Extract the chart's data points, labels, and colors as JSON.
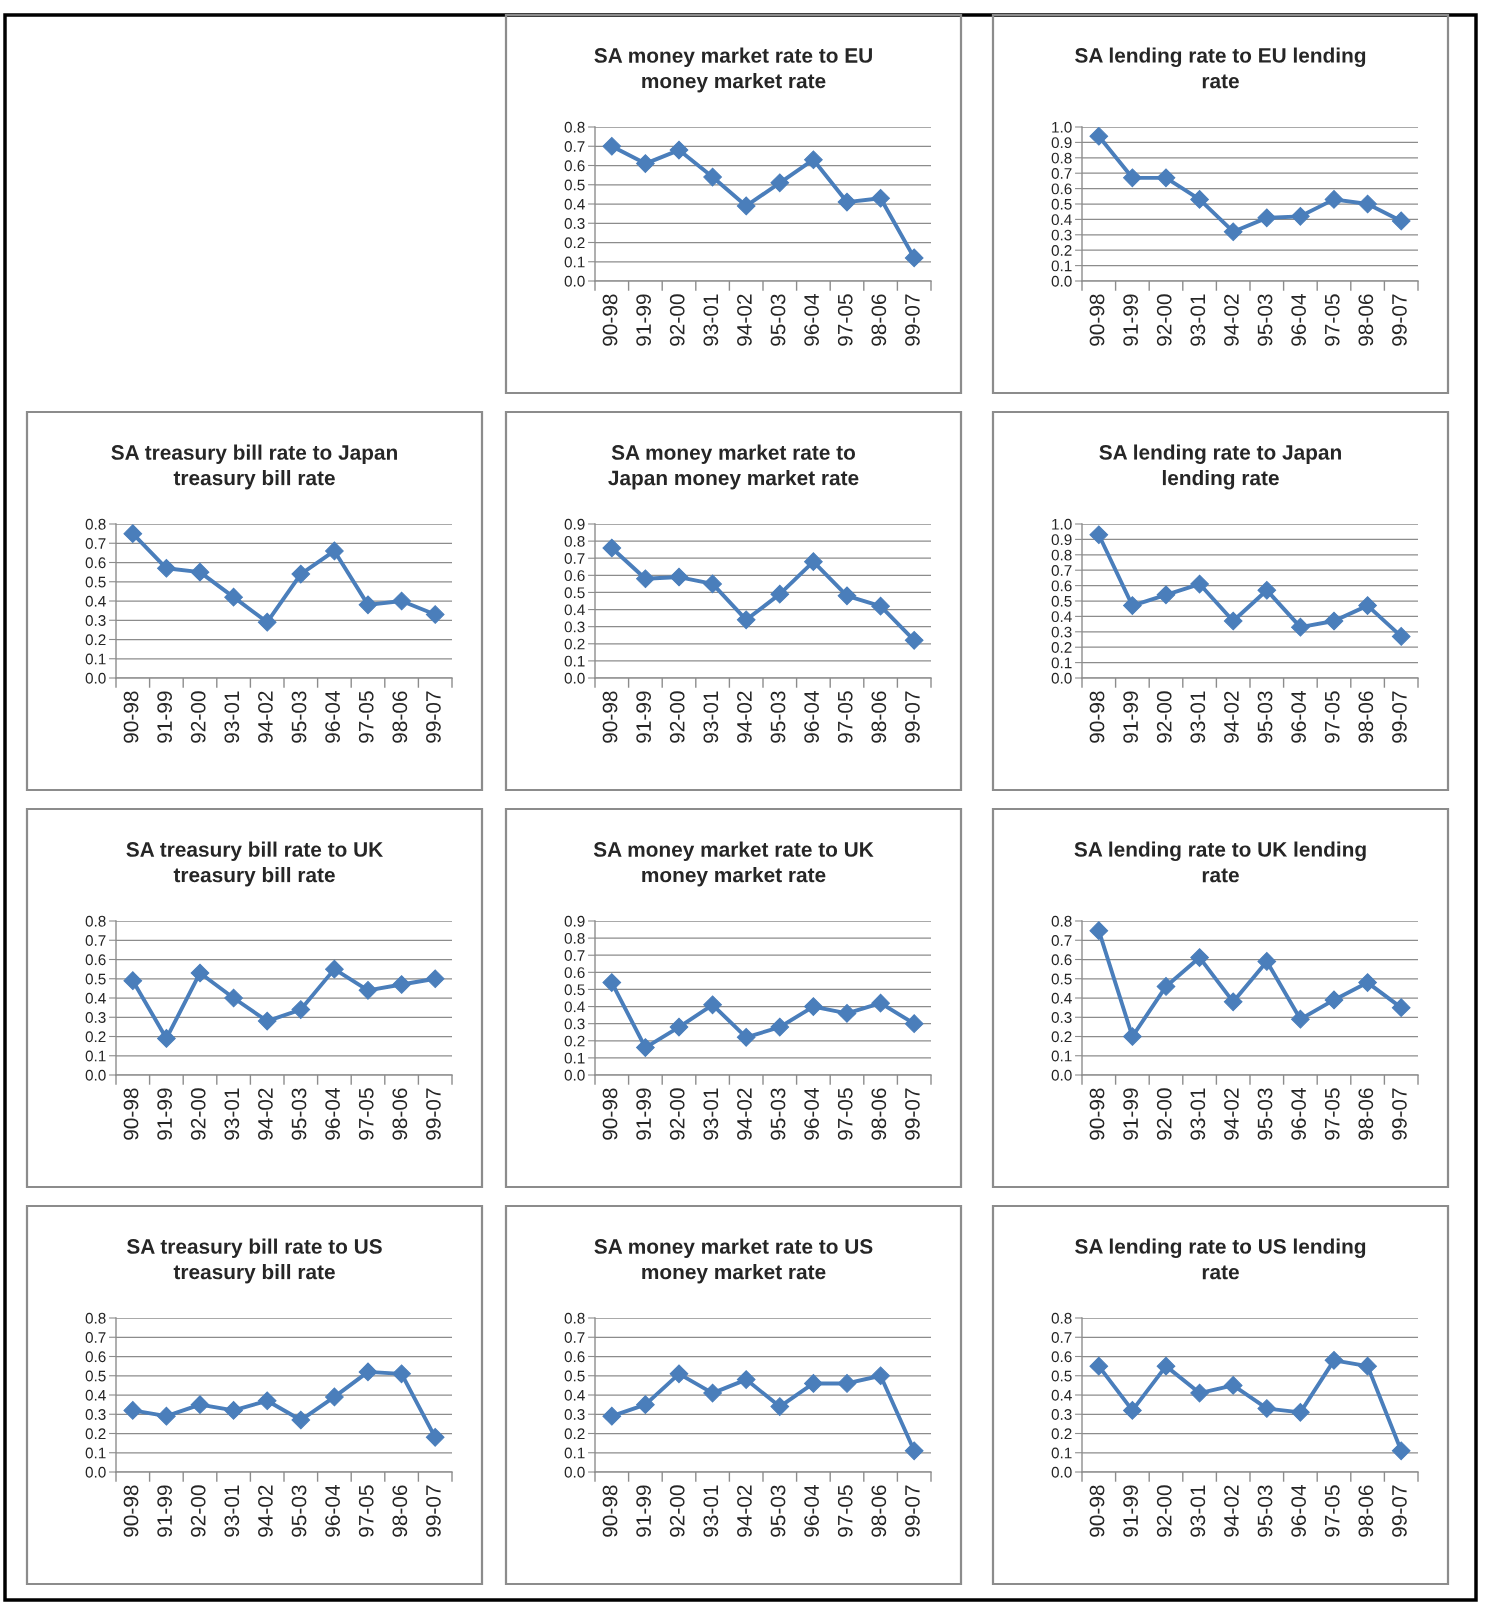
{
  "chart_data": [
    {
      "type": "line",
      "title": "SA money market rate to EU\nmoney market rate",
      "categories": [
        "90-98",
        "91-99",
        "92-00",
        "93-01",
        "94-02",
        "95-03",
        "96-04",
        "97-05",
        "98-06",
        "99-07"
      ],
      "values": [
        0.7,
        0.61,
        0.68,
        0.54,
        0.39,
        0.51,
        0.63,
        0.41,
        0.43,
        0.12
      ],
      "color": "#4a7ebb",
      "marker": "diamond",
      "grid": "y",
      "ylim": [
        0,
        0.8
      ],
      "yticks": [
        {
          "value": 0,
          "label": "0.0"
        },
        {
          "value": 0.1,
          "label": "0.1"
        },
        {
          "value": 0.2,
          "label": "0.2"
        },
        {
          "value": 0.3,
          "label": "0.3"
        },
        {
          "value": 0.4,
          "label": "0.4"
        },
        {
          "value": 0.5,
          "label": "0.5"
        },
        {
          "value": 0.6,
          "label": "0.6"
        },
        {
          "value": 0.7,
          "label": "0.7"
        },
        {
          "value": 0.8,
          "label": "0.8"
        }
      ]
    },
    {
      "type": "line",
      "title": "SA lending rate to EU lending\nrate",
      "categories": [
        "90-98",
        "91-99",
        "92-00",
        "93-01",
        "94-02",
        "95-03",
        "96-04",
        "97-05",
        "98-06",
        "99-07"
      ],
      "values": [
        0.94,
        0.67,
        0.67,
        0.53,
        0.32,
        0.41,
        0.42,
        0.53,
        0.5,
        0.39
      ],
      "color": "#4a7ebb",
      "marker": "diamond",
      "grid": "y",
      "ylim": [
        0,
        1
      ],
      "yticks": [
        {
          "value": 0,
          "label": "0.0"
        },
        {
          "value": 0.1,
          "label": "0.1"
        },
        {
          "value": 0.2,
          "label": "0.2"
        },
        {
          "value": 0.3,
          "label": "0.3"
        },
        {
          "value": 0.4,
          "label": "0.4"
        },
        {
          "value": 0.5,
          "label": "0.5"
        },
        {
          "value": 0.6,
          "label": "0.6"
        },
        {
          "value": 0.7,
          "label": "0.7"
        },
        {
          "value": 0.8,
          "label": "0.8"
        },
        {
          "value": 0.9,
          "label": "0.9"
        },
        {
          "value": 1,
          "label": "1.0"
        }
      ]
    },
    {
      "type": "line",
      "title": "SA treasury bill rate to Japan\ntreasury bill rate",
      "categories": [
        "90-98",
        "91-99",
        "92-00",
        "93-01",
        "94-02",
        "95-03",
        "96-04",
        "97-05",
        "98-06",
        "99-07"
      ],
      "values": [
        0.75,
        0.57,
        0.55,
        0.42,
        0.29,
        0.54,
        0.66,
        0.38,
        0.4,
        0.33
      ],
      "color": "#4a7ebb",
      "marker": "diamond",
      "grid": "y",
      "ylim": [
        0,
        0.8
      ],
      "yticks": [
        {
          "value": 0,
          "label": "0.0"
        },
        {
          "value": 0.1,
          "label": "0.1"
        },
        {
          "value": 0.2,
          "label": "0.2"
        },
        {
          "value": 0.3,
          "label": "0.3"
        },
        {
          "value": 0.4,
          "label": "0.4"
        },
        {
          "value": 0.5,
          "label": "0.5"
        },
        {
          "value": 0.6,
          "label": "0.6"
        },
        {
          "value": 0.7,
          "label": "0.7"
        },
        {
          "value": 0.8,
          "label": "0.8"
        }
      ]
    },
    {
      "type": "line",
      "title": "SA money market rate to\nJapan money market rate",
      "categories": [
        "90-98",
        "91-99",
        "92-00",
        "93-01",
        "94-02",
        "95-03",
        "96-04",
        "97-05",
        "98-06",
        "99-07"
      ],
      "values": [
        0.76,
        0.58,
        0.59,
        0.55,
        0.34,
        0.49,
        0.68,
        0.48,
        0.42,
        0.22
      ],
      "color": "#4a7ebb",
      "marker": "diamond",
      "grid": "y",
      "ylim": [
        0,
        0.9
      ],
      "yticks": [
        {
          "value": 0,
          "label": "0.0"
        },
        {
          "value": 0.1,
          "label": "0.1"
        },
        {
          "value": 0.2,
          "label": "0.2"
        },
        {
          "value": 0.3,
          "label": "0.3"
        },
        {
          "value": 0.4,
          "label": "0.4"
        },
        {
          "value": 0.5,
          "label": "0.5"
        },
        {
          "value": 0.6,
          "label": "0.6"
        },
        {
          "value": 0.7,
          "label": "0.7"
        },
        {
          "value": 0.8,
          "label": "0.8"
        },
        {
          "value": 0.9,
          "label": "0.9"
        }
      ]
    },
    {
      "type": "line",
      "title": "SA lending rate to Japan\nlending rate",
      "categories": [
        "90-98",
        "91-99",
        "92-00",
        "93-01",
        "94-02",
        "95-03",
        "96-04",
        "97-05",
        "98-06",
        "99-07"
      ],
      "values": [
        0.93,
        0.47,
        0.54,
        0.61,
        0.37,
        0.57,
        0.33,
        0.37,
        0.47,
        0.27
      ],
      "color": "#4a7ebb",
      "marker": "diamond",
      "grid": "y",
      "ylim": [
        0,
        1
      ],
      "yticks": [
        {
          "value": 0,
          "label": "0.0"
        },
        {
          "value": 0.1,
          "label": "0.1"
        },
        {
          "value": 0.2,
          "label": "0.2"
        },
        {
          "value": 0.3,
          "label": "0.3"
        },
        {
          "value": 0.4,
          "label": "0.4"
        },
        {
          "value": 0.5,
          "label": "0.5"
        },
        {
          "value": 0.6,
          "label": "0.6"
        },
        {
          "value": 0.7,
          "label": "0.7"
        },
        {
          "value": 0.8,
          "label": "0.8"
        },
        {
          "value": 0.9,
          "label": "0.9"
        },
        {
          "value": 1,
          "label": "1.0"
        }
      ]
    },
    {
      "type": "line",
      "title": "SA treasury bill rate to UK\ntreasury bill rate",
      "categories": [
        "90-98",
        "91-99",
        "92-00",
        "93-01",
        "94-02",
        "95-03",
        "96-04",
        "97-05",
        "98-06",
        "99-07"
      ],
      "values": [
        0.49,
        0.19,
        0.53,
        0.4,
        0.28,
        0.34,
        0.55,
        0.44,
        0.47,
        0.5
      ],
      "color": "#4a7ebb",
      "marker": "diamond",
      "grid": "y",
      "ylim": [
        0,
        0.8
      ],
      "yticks": [
        {
          "value": 0,
          "label": "0.0"
        },
        {
          "value": 0.1,
          "label": "0.1"
        },
        {
          "value": 0.2,
          "label": "0.2"
        },
        {
          "value": 0.3,
          "label": "0.3"
        },
        {
          "value": 0.4,
          "label": "0.4"
        },
        {
          "value": 0.5,
          "label": "0.5"
        },
        {
          "value": 0.6,
          "label": "0.6"
        },
        {
          "value": 0.7,
          "label": "0.7"
        },
        {
          "value": 0.8,
          "label": "0.8"
        }
      ]
    },
    {
      "type": "line",
      "title": "SA money market rate to UK\nmoney market rate",
      "categories": [
        "90-98",
        "91-99",
        "92-00",
        "93-01",
        "94-02",
        "95-03",
        "96-04",
        "97-05",
        "98-06",
        "99-07"
      ],
      "values": [
        0.54,
        0.16,
        0.28,
        0.41,
        0.22,
        0.28,
        0.4,
        0.36,
        0.42,
        0.3
      ],
      "color": "#4a7ebb",
      "marker": "diamond",
      "grid": "y",
      "ylim": [
        0,
        0.9
      ],
      "yticks": [
        {
          "value": 0,
          "label": "0.0"
        },
        {
          "value": 0.1,
          "label": "0.1"
        },
        {
          "value": 0.2,
          "label": "0.2"
        },
        {
          "value": 0.3,
          "label": "0.3"
        },
        {
          "value": 0.4,
          "label": "0.4"
        },
        {
          "value": 0.5,
          "label": "0.5"
        },
        {
          "value": 0.6,
          "label": "0.6"
        },
        {
          "value": 0.7,
          "label": "0.7"
        },
        {
          "value": 0.8,
          "label": "0.8"
        },
        {
          "value": 0.9,
          "label": "0.9"
        }
      ]
    },
    {
      "type": "line",
      "title": "SA lending rate to UK lending\nrate",
      "categories": [
        "90-98",
        "91-99",
        "92-00",
        "93-01",
        "94-02",
        "95-03",
        "96-04",
        "97-05",
        "98-06",
        "99-07"
      ],
      "values": [
        0.75,
        0.2,
        0.46,
        0.61,
        0.38,
        0.59,
        0.29,
        0.39,
        0.48,
        0.35
      ],
      "color": "#4a7ebb",
      "marker": "diamond",
      "grid": "y",
      "ylim": [
        0,
        0.8
      ],
      "yticks": [
        {
          "value": 0,
          "label": "0.0"
        },
        {
          "value": 0.1,
          "label": "0.1"
        },
        {
          "value": 0.2,
          "label": "0.2"
        },
        {
          "value": 0.3,
          "label": "0.3"
        },
        {
          "value": 0.4,
          "label": "0.4"
        },
        {
          "value": 0.5,
          "label": "0.5"
        },
        {
          "value": 0.6,
          "label": "0.6"
        },
        {
          "value": 0.7,
          "label": "0.7"
        },
        {
          "value": 0.8,
          "label": "0.8"
        }
      ]
    },
    {
      "type": "line",
      "title": "SA treasury bill rate to US\ntreasury bill rate",
      "categories": [
        "90-98",
        "91-99",
        "92-00",
        "93-01",
        "94-02",
        "95-03",
        "96-04",
        "97-05",
        "98-06",
        "99-07"
      ],
      "values": [
        0.32,
        0.29,
        0.35,
        0.32,
        0.37,
        0.27,
        0.39,
        0.52,
        0.51,
        0.18
      ],
      "color": "#4a7ebb",
      "marker": "diamond",
      "grid": "y",
      "ylim": [
        0,
        0.8
      ],
      "yticks": [
        {
          "value": 0,
          "label": "0.0"
        },
        {
          "value": 0.1,
          "label": "0.1"
        },
        {
          "value": 0.2,
          "label": "0.2"
        },
        {
          "value": 0.3,
          "label": "0.3"
        },
        {
          "value": 0.4,
          "label": "0.4"
        },
        {
          "value": 0.5,
          "label": "0.5"
        },
        {
          "value": 0.6,
          "label": "0.6"
        },
        {
          "value": 0.7,
          "label": "0.7"
        },
        {
          "value": 0.8,
          "label": "0.8"
        }
      ]
    },
    {
      "type": "line",
      "title": "SA money market rate to US\nmoney market rate",
      "categories": [
        "90-98",
        "91-99",
        "92-00",
        "93-01",
        "94-02",
        "95-03",
        "96-04",
        "97-05",
        "98-06",
        "99-07"
      ],
      "values": [
        0.29,
        0.35,
        0.51,
        0.41,
        0.48,
        0.34,
        0.46,
        0.46,
        0.5,
        0.11
      ],
      "color": "#4a7ebb",
      "marker": "diamond",
      "grid": "y",
      "ylim": [
        0,
        0.8
      ],
      "yticks": [
        {
          "value": 0,
          "label": "0.0"
        },
        {
          "value": 0.1,
          "label": "0.1"
        },
        {
          "value": 0.2,
          "label": "0.2"
        },
        {
          "value": 0.3,
          "label": "0.3"
        },
        {
          "value": 0.4,
          "label": "0.4"
        },
        {
          "value": 0.5,
          "label": "0.5"
        },
        {
          "value": 0.6,
          "label": "0.6"
        },
        {
          "value": 0.7,
          "label": "0.7"
        },
        {
          "value": 0.8,
          "label": "0.8"
        }
      ]
    },
    {
      "type": "line",
      "title": "SA lending rate to US lending\nrate",
      "categories": [
        "90-98",
        "91-99",
        "92-00",
        "93-01",
        "94-02",
        "95-03",
        "96-04",
        "97-05",
        "98-06",
        "99-07"
      ],
      "values": [
        0.55,
        0.32,
        0.55,
        0.41,
        0.45,
        0.33,
        0.31,
        0.58,
        0.55,
        0.11
      ],
      "color": "#4a7ebb",
      "marker": "diamond",
      "grid": "y",
      "ylim": [
        0,
        0.8
      ],
      "yticks": [
        {
          "value": 0,
          "label": "0.0"
        },
        {
          "value": 0.1,
          "label": "0.1"
        },
        {
          "value": 0.2,
          "label": "0.2"
        },
        {
          "value": 0.3,
          "label": "0.3"
        },
        {
          "value": 0.4,
          "label": "0.4"
        },
        {
          "value": 0.5,
          "label": "0.5"
        },
        {
          "value": 0.6,
          "label": "0.6"
        },
        {
          "value": 0.7,
          "label": "0.7"
        },
        {
          "value": 0.8,
          "label": "0.8"
        }
      ]
    }
  ]
}
